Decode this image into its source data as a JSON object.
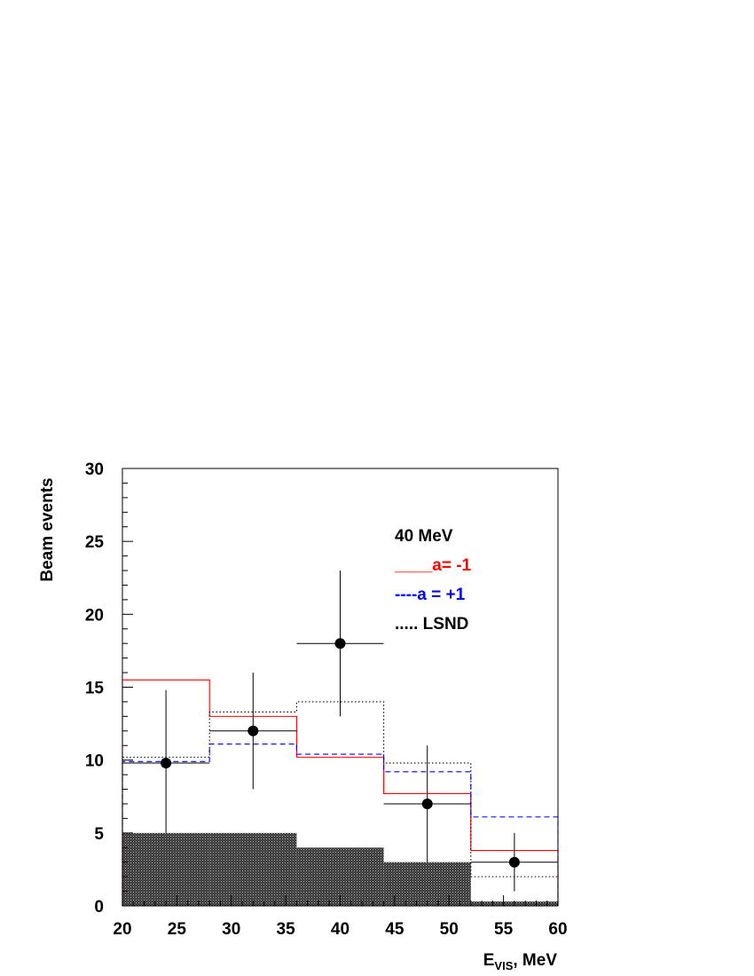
{
  "chart_data": {
    "type": "histogram",
    "ylabel": "Beam events",
    "xlabel_main": "E",
    "xlabel_sub": "VIS",
    "xlabel_tail": ", MeV",
    "xlim": [
      20,
      60
    ],
    "ylim": [
      0,
      30
    ],
    "xticks": [
      20,
      25,
      30,
      35,
      40,
      45,
      50,
      55,
      60
    ],
    "yticks": [
      0,
      5,
      10,
      15,
      20,
      25,
      30
    ],
    "bin_edges": [
      20,
      28,
      36,
      44,
      52,
      60
    ],
    "legend": {
      "title": "40 MeV",
      "entries": [
        {
          "label": "____a= -1",
          "color": "#ff0000"
        },
        {
          "label": "----a = +1",
          "color": "#0000ff"
        },
        {
          "label": "..... LSND",
          "color": "#000000"
        }
      ]
    },
    "series": [
      {
        "name": "a= -1",
        "style": "solid",
        "color": "#ff0000",
        "values": [
          15.5,
          13.0,
          10.2,
          7.7,
          3.8
        ]
      },
      {
        "name": "a = +1",
        "style": "dashed",
        "color": "#0000ff",
        "values": [
          9.9,
          11.1,
          10.4,
          9.2,
          6.1
        ]
      },
      {
        "name": "LSND",
        "style": "dotted",
        "color": "#000000",
        "values": [
          10.2,
          13.3,
          14.0,
          9.8,
          2.0
        ]
      }
    ],
    "background": {
      "color": "#555555",
      "values": [
        5,
        5,
        4,
        3,
        0.3
      ]
    },
    "data_points": [
      {
        "x": 24,
        "y": 9.8,
        "xerr": [
          20,
          28
        ],
        "yerr": [
          5.0,
          14.8
        ]
      },
      {
        "x": 32,
        "y": 12,
        "xerr": [
          28,
          36
        ],
        "yerr": [
          8,
          16
        ]
      },
      {
        "x": 40,
        "y": 18,
        "xerr": [
          36,
          44
        ],
        "yerr": [
          13,
          23
        ]
      },
      {
        "x": 48,
        "y": 7,
        "xerr": [
          44,
          52
        ],
        "yerr": [
          3,
          11
        ]
      },
      {
        "x": 56,
        "y": 3,
        "xerr": [
          52,
          60
        ],
        "yerr": [
          1,
          5
        ]
      }
    ]
  }
}
